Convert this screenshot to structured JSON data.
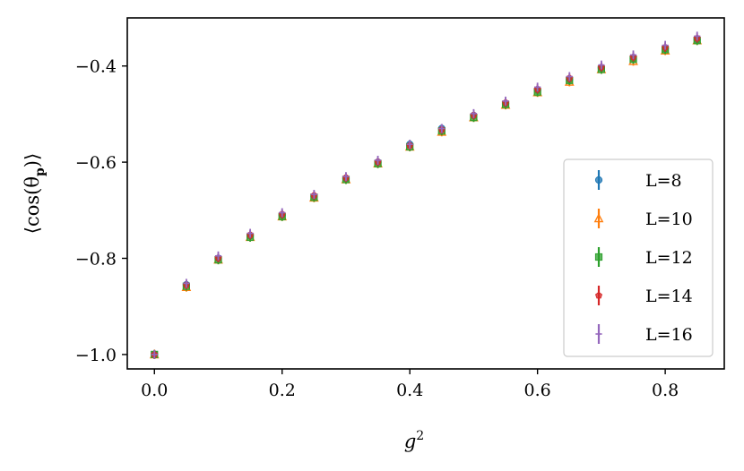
{
  "chart_data": {
    "type": "scatter",
    "title": "",
    "xlabel": "g",
    "xlabel_sup": "2",
    "ylabel_prefix": "⟨cos(θ",
    "ylabel_sub": "p",
    "ylabel_suffix": ")⟩",
    "xlim": [
      -0.0425,
      0.8925
    ],
    "ylim": [
      -1.03,
      -0.3
    ],
    "xticks": [
      0.0,
      0.2,
      0.4,
      0.6,
      0.8
    ],
    "xtick_labels": [
      "0.0",
      "0.2",
      "0.4",
      "0.6",
      "0.8"
    ],
    "yticks": [
      -1.0,
      -0.8,
      -0.6,
      -0.4
    ],
    "ytick_labels": [
      "−1.0",
      "−0.8",
      "−0.6",
      "−0.4"
    ],
    "grid": false,
    "legend_position": "lower right",
    "x": [
      0.0,
      0.05,
      0.1,
      0.15,
      0.2,
      0.25,
      0.3,
      0.35,
      0.4,
      0.45,
      0.5,
      0.55,
      0.6,
      0.65,
      0.7,
      0.75,
      0.8,
      0.85
    ],
    "series": [
      {
        "name": "L=8",
        "marker": "circle",
        "color": "#1f77b4",
        "values": [
          -1.0,
          -0.855,
          -0.8,
          -0.753,
          -0.71,
          -0.671,
          -0.634,
          -0.6,
          -0.563,
          -0.53,
          -0.503,
          -0.478,
          -0.45,
          -0.428,
          -0.404,
          -0.384,
          -0.364,
          -0.345
        ]
      },
      {
        "name": "L=10",
        "marker": "triangle",
        "color": "#ff7f0e",
        "values": [
          -1.0,
          -0.86,
          -0.803,
          -0.756,
          -0.713,
          -0.674,
          -0.636,
          -0.603,
          -0.568,
          -0.537,
          -0.507,
          -0.481,
          -0.455,
          -0.433,
          -0.407,
          -0.39,
          -0.368,
          -0.347
        ]
      },
      {
        "name": "L=12",
        "marker": "square",
        "color": "#2ca02c",
        "values": [
          -1.0,
          -0.858,
          -0.803,
          -0.756,
          -0.713,
          -0.673,
          -0.636,
          -0.603,
          -0.568,
          -0.535,
          -0.507,
          -0.48,
          -0.454,
          -0.43,
          -0.407,
          -0.386,
          -0.366,
          -0.347
        ]
      },
      {
        "name": "L=14",
        "marker": "pentagon",
        "color": "#d62728",
        "values": [
          -1.0,
          -0.855,
          -0.799,
          -0.751,
          -0.708,
          -0.669,
          -0.632,
          -0.599,
          -0.565,
          -0.532,
          -0.502,
          -0.476,
          -0.448,
          -0.425,
          -0.402,
          -0.381,
          -0.361,
          -0.342
        ]
      },
      {
        "name": "L=16",
        "marker": "plus",
        "color": "#9467bd",
        "values": [
          -1.0,
          -0.852,
          -0.795,
          -0.748,
          -0.705,
          -0.667,
          -0.63,
          -0.596,
          -0.563,
          -0.53,
          -0.499,
          -0.473,
          -0.444,
          -0.422,
          -0.398,
          -0.377,
          -0.357,
          -0.338
        ]
      }
    ]
  }
}
